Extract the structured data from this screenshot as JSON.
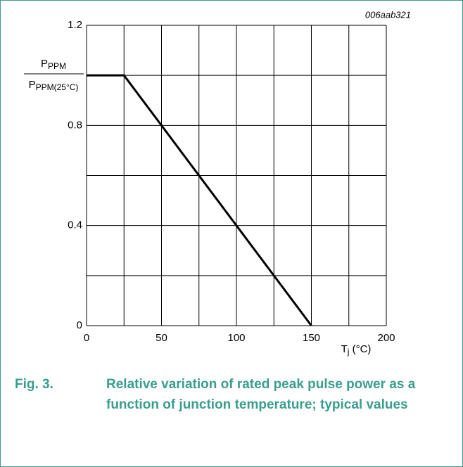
{
  "chart_data": {
    "type": "line",
    "annotation": "006aab321",
    "y_label_num": {
      "main": "P",
      "sub": "PPM"
    },
    "y_label_den": {
      "main": "P",
      "sub": "PPM(25°C)"
    },
    "x_label": {
      "main": "T",
      "sub": "j",
      "unit": " (°C)"
    },
    "x": [
      0,
      25,
      150
    ],
    "series": [
      {
        "color": "#000000",
        "values": [
          1.0,
          1.0,
          0
        ]
      }
    ],
    "xlim": [
      0,
      200
    ],
    "xticks": [
      0,
      50,
      100,
      150,
      200
    ],
    "xminor": [
      25,
      75,
      125,
      175
    ],
    "ylim": [
      0,
      1.2
    ],
    "yticks": [
      0,
      0.4,
      0.8,
      1.2
    ],
    "yminor": [
      0.2,
      0.6,
      1.0
    ],
    "grid": true
  },
  "caption": {
    "number": "Fig. 3.",
    "text": "Relative variation of rated peak pulse power as a function of junction temperature; typical values"
  }
}
